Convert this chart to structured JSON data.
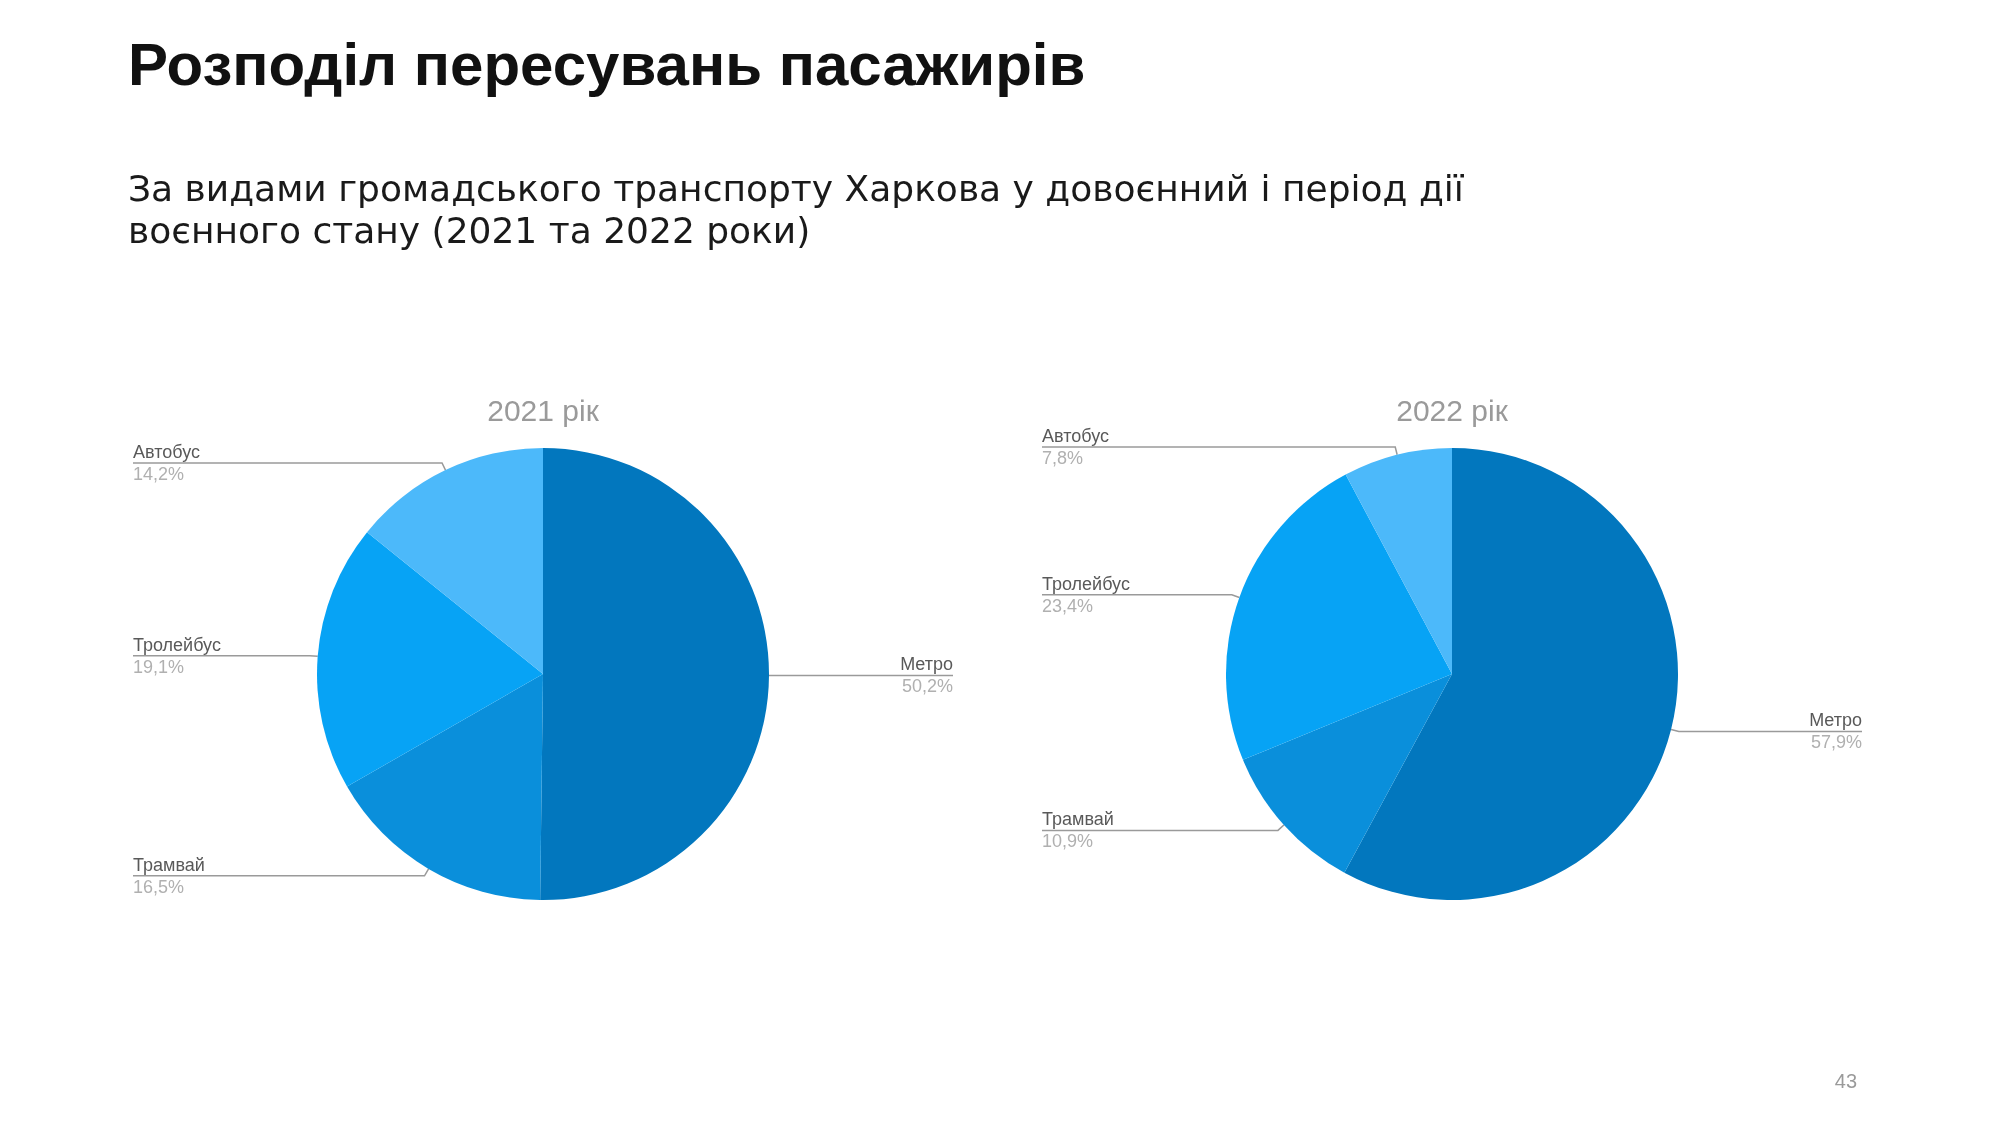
{
  "chart_data": [
    {
      "type": "other",
      "title": "Розподіл пересувань пасажирів",
      "subtitle": "За видами громадського транспорту Харкова у довоєнний і період дії воєнного стану (2021 та 2022 роки)"
    },
    {
      "type": "pie",
      "title": "2021 рік",
      "categories": [
        "Метро",
        "Трамвай",
        "Тролейбус",
        "Автобус"
      ],
      "values": [
        50.2,
        16.5,
        19.1,
        14.2
      ],
      "value_labels": [
        "50,2%",
        "16,5%",
        "19,1%",
        "14,2%"
      ],
      "colors": [
        "#0277be",
        "#0a8fdb",
        "#07a3f5",
        "#4cb9fa"
      ]
    },
    {
      "type": "pie",
      "title": "2022 рік",
      "categories": [
        "Метро",
        "Трамвай",
        "Тролейбус",
        "Автобус"
      ],
      "values": [
        57.9,
        10.9,
        23.4,
        7.8
      ],
      "value_labels": [
        "57,9%",
        "10,9%",
        "23,4%",
        "7,8%"
      ],
      "colors": [
        "#0277be",
        "#0a8fdb",
        "#07a3f5",
        "#4cb9fa"
      ],
      "annotations": [
        "43"
      ]
    }
  ]
}
